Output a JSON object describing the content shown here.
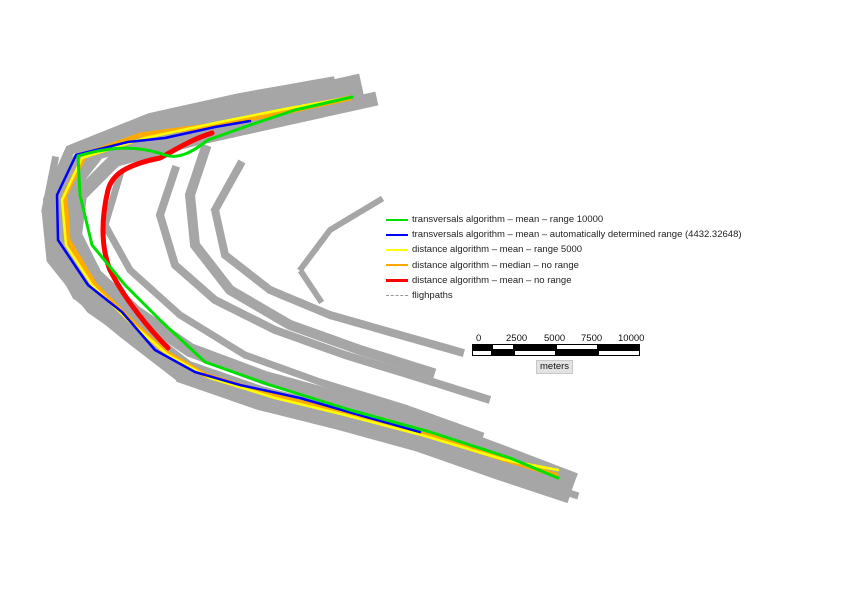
{
  "legend": {
    "items": [
      {
        "label": "transversals algorithm – mean – range 10000",
        "color": "#00e000",
        "style": "solid"
      },
      {
        "label": "transversals algorithm – mean – automatically determined range (4432.32648)",
        "color": "#0000ff",
        "style": "solid"
      },
      {
        "label": "distance algorithm – mean – range 5000",
        "color": "#ffff00",
        "style": "solid"
      },
      {
        "label": "distance algorithm – median – no range",
        "color": "#ffaa00",
        "style": "solid"
      },
      {
        "label": "distance algorithm – mean – no range",
        "color": "#ff0000",
        "style": "solid"
      },
      {
        "label": "flighpaths",
        "color": "#999999",
        "style": "dashed"
      }
    ]
  },
  "scalebar": {
    "ticks": [
      "0",
      "2500",
      "5000",
      "7500",
      "10000"
    ],
    "units": "meters"
  }
}
